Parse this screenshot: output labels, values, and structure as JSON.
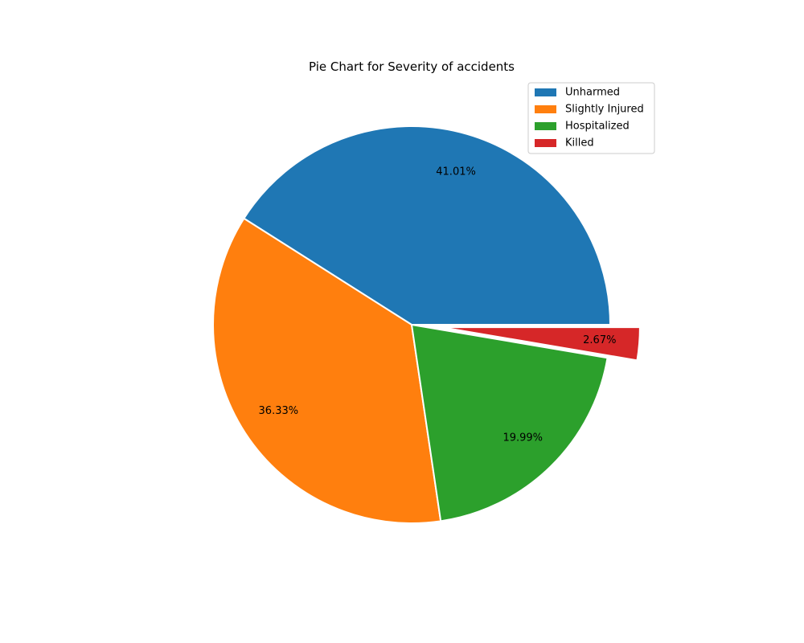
{
  "chart_data": {
    "type": "pie",
    "title": "Pie Chart for Severity of accidents",
    "categories": [
      "Unharmed",
      "Slightly Injured",
      "Hospitalized",
      "Killed"
    ],
    "values": [
      41.01,
      36.33,
      19.99,
      2.67
    ],
    "labels": [
      "41.01%",
      "36.33%",
      "19.99%",
      "2.67%"
    ],
    "colors": [
      "#1f77b4",
      "#ff7f0e",
      "#2ca02c",
      "#d62728"
    ],
    "exploded": [
      false,
      false,
      false,
      true
    ],
    "start_angle_deg": 0,
    "direction": "counterclockwise",
    "legend_position": "top-right"
  }
}
